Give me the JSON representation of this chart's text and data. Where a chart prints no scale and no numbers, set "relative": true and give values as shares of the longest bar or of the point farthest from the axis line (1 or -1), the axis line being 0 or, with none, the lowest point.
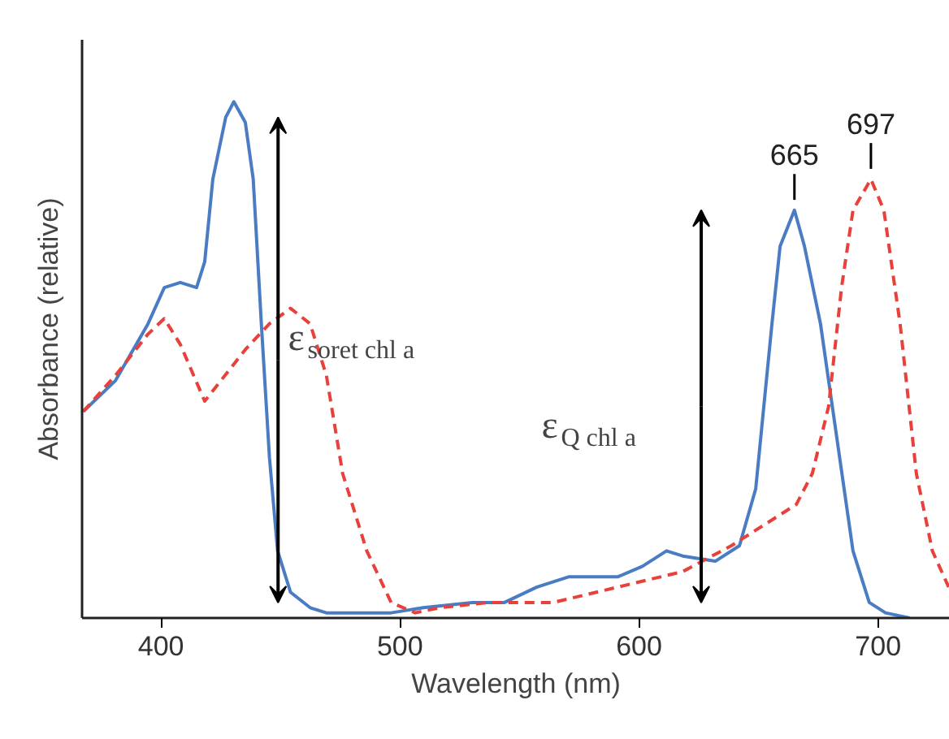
{
  "chart_data": {
    "type": "line",
    "relative": true,
    "xlabel": "Wavelength (nm)",
    "ylabel": "Absorbance (relative)",
    "xlim": [
      367,
      730
    ],
    "xticks": [
      400,
      500,
      600,
      700
    ],
    "series": [
      {
        "color": "#4a7cc4",
        "line_style": "solid",
        "x": [
          367.5,
          381,
          394.6,
          401.4,
          408.1,
          414.9,
          418.3,
          421.7,
          427.1,
          430.5,
          435.3,
          438.6,
          442,
          445.4,
          448.8,
          454.2,
          462.4,
          469.2,
          482.7,
          496.3,
          509.8,
          530.2,
          543.7,
          557.3,
          570.8,
          591.2,
          601.4,
          611.5,
          618.3,
          631.9,
          642,
          648.8,
          655.6,
          659,
          665,
          669.2,
          675.9,
          682.7,
          689.5,
          696.3,
          703.1,
          713.2
        ],
        "values": [
          0.4,
          0.46,
          0.57,
          0.64,
          0.65,
          0.64,
          0.69,
          0.85,
          0.97,
          1,
          0.96,
          0.85,
          0.57,
          0.31,
          0.13,
          0.05,
          0.02,
          0.01,
          0.01,
          0.01,
          0.02,
          0.03,
          0.03,
          0.06,
          0.08,
          0.08,
          0.1,
          0.13,
          0.12,
          0.11,
          0.14,
          0.25,
          0.57,
          0.72,
          0.79,
          0.72,
          0.57,
          0.35,
          0.13,
          0.03,
          0.01,
          0
        ]
      },
      {
        "color": "#e8403a",
        "line_style": "dashed",
        "x": [
          367.5,
          381,
          394.6,
          401.4,
          408.1,
          418.3,
          425.1,
          435.3,
          445.4,
          454.2,
          462.4,
          469.2,
          476,
          486.1,
          496.3,
          506.4,
          516.6,
          536.9,
          564.1,
          591.2,
          618.3,
          638.6,
          655.6,
          665.8,
          672.5,
          679.3,
          684.7,
          689.5,
          697,
          702.4,
          709.2,
          716,
          722.7,
          729.5
        ],
        "values": [
          0.4,
          0.47,
          0.55,
          0.58,
          0.53,
          0.42,
          0.46,
          0.52,
          0.57,
          0.6,
          0.57,
          0.47,
          0.28,
          0.13,
          0.03,
          0.01,
          0.02,
          0.03,
          0.03,
          0.06,
          0.09,
          0.14,
          0.19,
          0.22,
          0.28,
          0.41,
          0.64,
          0.79,
          0.85,
          0.79,
          0.57,
          0.28,
          0.13,
          0.06
        ]
      }
    ],
    "annotations": [
      {
        "text": "665",
        "x": 665,
        "y": 0.79
      },
      {
        "text": "697",
        "x": 697,
        "y": 0.85
      },
      "ε$_{soret chl a}$",
      "ε$_{Q chl a}$"
    ]
  }
}
